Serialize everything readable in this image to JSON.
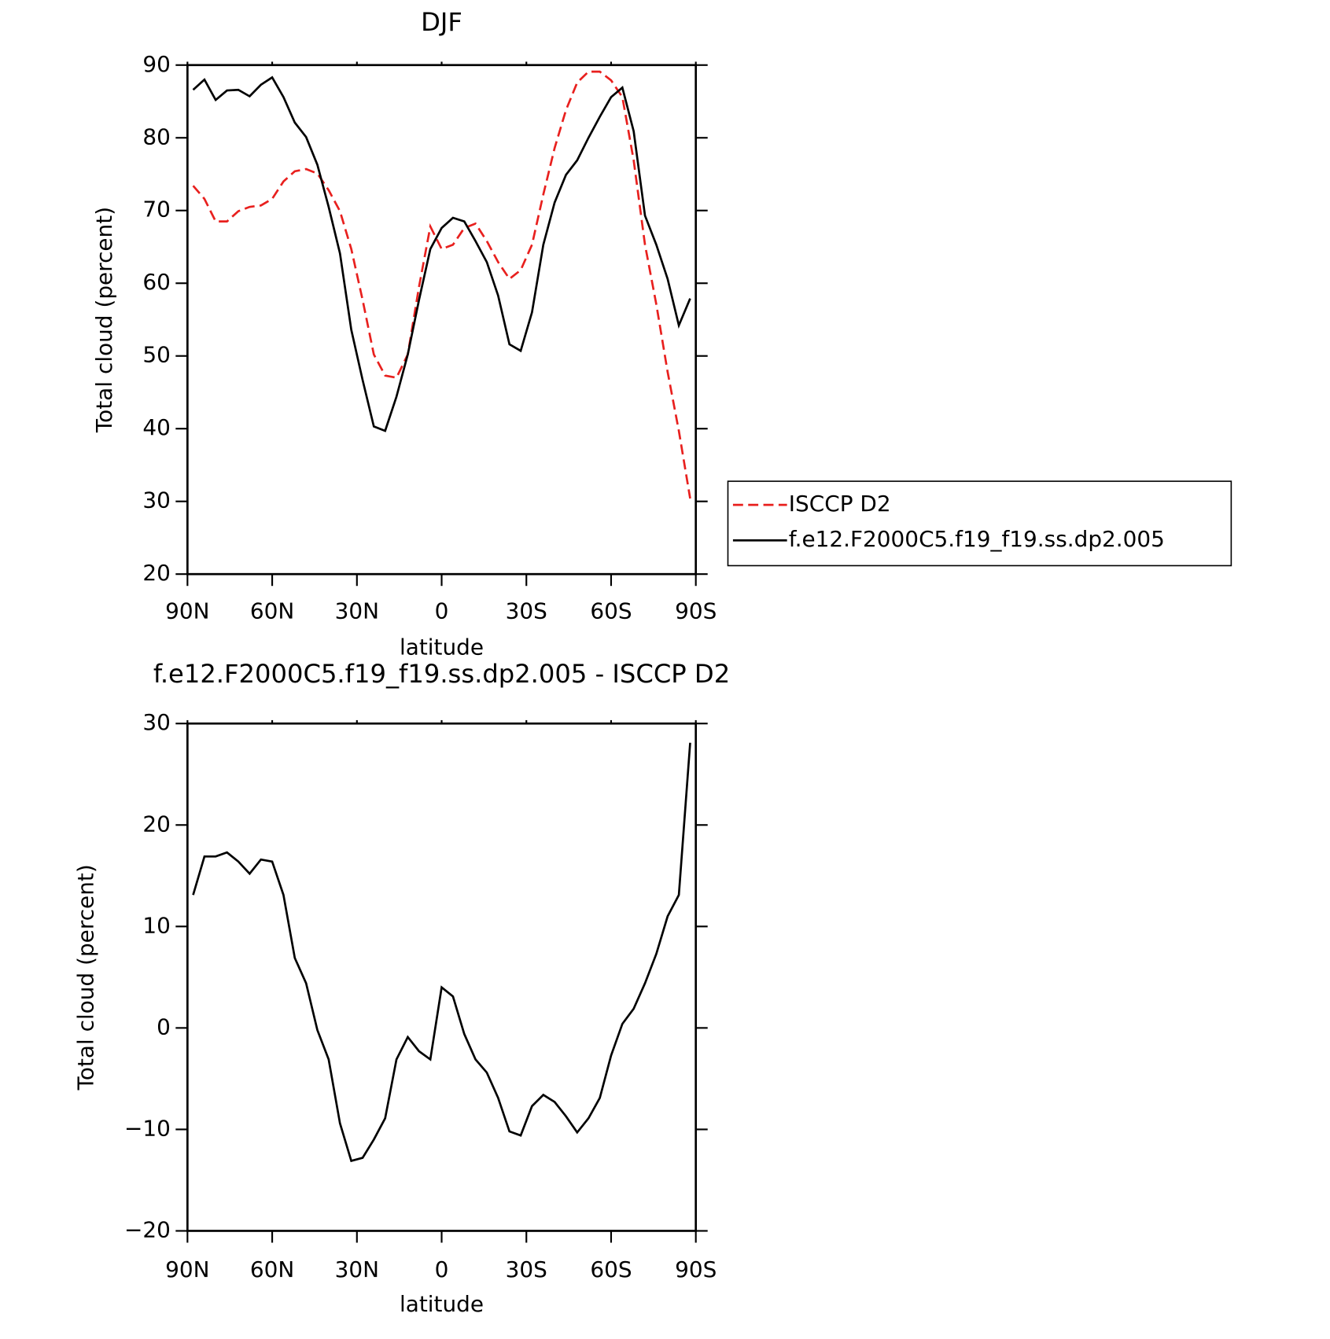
{
  "chart_data": [
    {
      "type": "line",
      "title": "DJF",
      "xlabel": "latitude",
      "ylabel": "Total cloud (percent)",
      "x": [
        88,
        84,
        80,
        76,
        72,
        68,
        64,
        60,
        56,
        52,
        48,
        44,
        40,
        36,
        32,
        28,
        24,
        20,
        16,
        12,
        8,
        4,
        0,
        -4,
        -8,
        -12,
        -16,
        -20,
        -24,
        -28,
        -32,
        -36,
        -40,
        -44,
        -48,
        -52,
        -56,
        -60,
        -64,
        -68,
        -72,
        -76,
        -80,
        -84,
        -88
      ],
      "xlim": [
        90,
        -90
      ],
      "xticks": [
        {
          "value": 90,
          "label": "90N"
        },
        {
          "value": 60,
          "label": "60N"
        },
        {
          "value": 30,
          "label": "30N"
        },
        0,
        {
          "value": -30,
          "label": "30S"
        },
        {
          "value": -60,
          "label": "60S"
        },
        {
          "value": -90,
          "label": "90S"
        }
      ],
      "ylim": [
        20,
        90
      ],
      "yticks": [
        20,
        30,
        40,
        50,
        60,
        70,
        80,
        90
      ],
      "legend": "outside-right",
      "series": [
        {
          "name": "ISCCP D2",
          "color": "#e8201e",
          "line_style": "dashed",
          "values": [
            73.4,
            71.6,
            68.5,
            68.5,
            69.9,
            70.5,
            70.7,
            71.6,
            74.0,
            75.4,
            75.7,
            75.1,
            72.8,
            69.9,
            64.7,
            57.7,
            50.2,
            47.3,
            47.0,
            50.2,
            59.5,
            67.8,
            64.7,
            65.3,
            67.6,
            68.2,
            65.8,
            62.9,
            60.6,
            61.8,
            65.3,
            72.2,
            78.6,
            83.8,
            87.6,
            89.1,
            89.1,
            87.9,
            85.6,
            76.9,
            65.3,
            57.1,
            47.8,
            39.7,
            30.4
          ]
        },
        {
          "name": "f.e12.F2000C5.f19_f19.ss.dp2.005",
          "color": "#000000",
          "line_style": "solid",
          "values": [
            86.6,
            88.0,
            85.2,
            86.5,
            86.6,
            85.7,
            87.3,
            88.3,
            85.6,
            82.1,
            80.1,
            76.3,
            70.5,
            64.1,
            53.6,
            46.7,
            40.3,
            39.7,
            44.4,
            50.2,
            57.7,
            64.7,
            67.6,
            69.0,
            68.5,
            65.8,
            62.9,
            58.3,
            51.6,
            50.7,
            56.0,
            65.3,
            71.1,
            74.9,
            76.9,
            80.0,
            82.9,
            85.6,
            86.9,
            80.9,
            69.3,
            65.3,
            60.6,
            54.2,
            57.9
          ]
        }
      ]
    },
    {
      "type": "line",
      "title": "f.e12.F2000C5.f19_f19.ss.dp2.005 - ISCCP D2",
      "xlabel": "latitude",
      "ylabel": "Total cloud (percent)",
      "x": [
        88,
        84,
        80,
        76,
        72,
        68,
        64,
        60,
        56,
        52,
        48,
        44,
        40,
        36,
        32,
        28,
        24,
        20,
        16,
        12,
        8,
        4,
        0,
        -4,
        -8,
        -12,
        -16,
        -20,
        -24,
        -28,
        -32,
        -36,
        -40,
        -44,
        -48,
        -52,
        -56,
        -60,
        -64,
        -68,
        -72,
        -76,
        -80,
        -84,
        -88
      ],
      "xlim": [
        90,
        -90
      ],
      "xticks": [
        {
          "value": 90,
          "label": "90N"
        },
        {
          "value": 60,
          "label": "60N"
        },
        {
          "value": 30,
          "label": "30N"
        },
        0,
        {
          "value": -30,
          "label": "30S"
        },
        {
          "value": -60,
          "label": "60S"
        },
        {
          "value": -90,
          "label": "90S"
        }
      ],
      "ylim": [
        -20,
        30
      ],
      "yticks": [
        {
          "value": -20,
          "label": "−20"
        },
        {
          "value": -10,
          "label": "−10"
        },
        0,
        10,
        20,
        30
      ],
      "color": "#000000",
      "values": [
        13.1,
        16.9,
        16.9,
        17.3,
        16.4,
        15.2,
        16.6,
        16.4,
        13.1,
        6.9,
        4.4,
        -0.2,
        -3.1,
        -9.4,
        -13.1,
        -12.8,
        -11.0,
        -8.9,
        -3.1,
        -0.9,
        -2.3,
        -3.1,
        4.0,
        3.1,
        -0.6,
        -3.1,
        -4.4,
        -6.9,
        -10.2,
        -10.6,
        -7.7,
        -6.6,
        -7.3,
        -8.7,
        -10.3,
        -8.9,
        -6.9,
        -2.7,
        0.4,
        1.9,
        4.4,
        7.3,
        11.0,
        13.1,
        28.1
      ]
    }
  ]
}
